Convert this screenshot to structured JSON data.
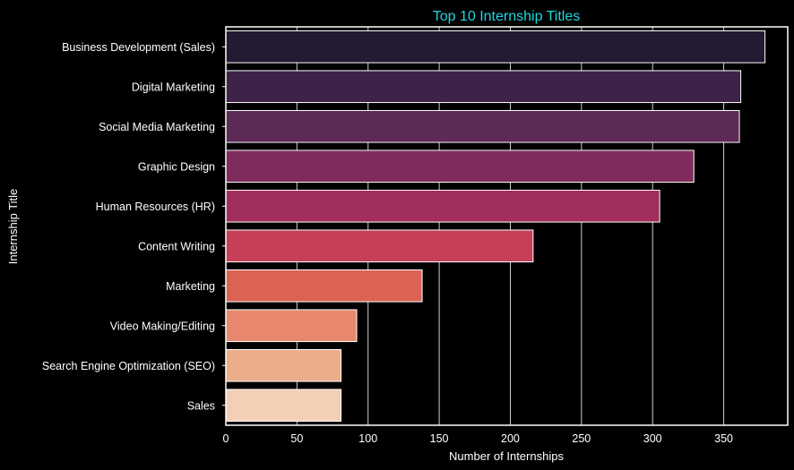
{
  "chart_data": {
    "type": "bar",
    "orientation": "horizontal",
    "title": "Top 10 Internship Titles",
    "xlabel": "Number of Internships",
    "ylabel": "Internship Title",
    "xlim": [
      0,
      395
    ],
    "xticks": [
      0,
      50,
      100,
      150,
      200,
      250,
      300,
      350
    ],
    "grid": true,
    "categories": [
      "Business Development (Sales)",
      "Digital Marketing",
      "Social Media Marketing",
      "Graphic Design",
      "Human Resources (HR)",
      "Content Writing",
      "Marketing",
      "Video Making/Editing",
      "Search Engine Optimization (SEO)",
      "Sales"
    ],
    "values": [
      379,
      362,
      361,
      329,
      305,
      216,
      138,
      92,
      81,
      81
    ],
    "colors": [
      "#241a33",
      "#3d2347",
      "#5c2a55",
      "#7f2c5c",
      "#a22e5e",
      "#c6405a",
      "#dc6354",
      "#e7886c",
      "#edad8b",
      "#f2cfb5"
    ],
    "title_color": "#1fd6df",
    "background": "#000000"
  }
}
